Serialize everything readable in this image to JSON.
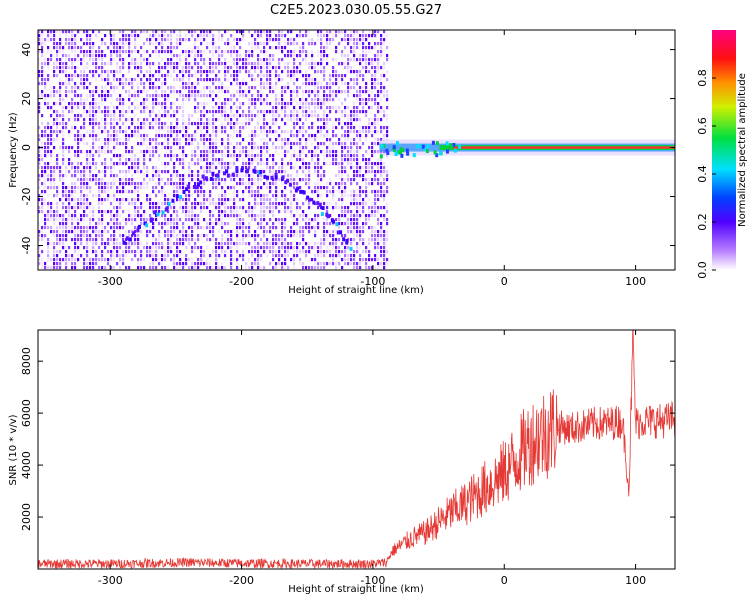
{
  "title": "C2E5.2023.030.05.55.G27",
  "colors": {
    "snr_line": "#e53935",
    "spectrogram_base": "#7a2cff",
    "tone": "#ff2f2f"
  },
  "chart_data": [
    {
      "type": "heatmap",
      "xlabel": "Height of straight line (km)",
      "ylabel": "Frequency (Hz)",
      "xlim": [
        -355,
        130
      ],
      "ylim": [
        -50,
        48
      ],
      "x_ticks": [
        -300,
        -200,
        -100,
        0,
        100
      ],
      "y_ticks": [
        -40,
        -20,
        0,
        20,
        40
      ],
      "colorbar": {
        "label": "Normalized spectral amplitude",
        "range": [
          0.0,
          1.0
        ],
        "ticks": [
          "0.0",
          "0.2",
          "0.4",
          "0.6",
          "0.8"
        ],
        "colormap": "rainbow"
      },
      "features": [
        {
          "name": "arc",
          "x": [
            -290,
            -260,
            -230,
            -200,
            -170,
            -140,
            -118
          ],
          "y": [
            -38,
            -24,
            -12,
            -8,
            -12,
            -24,
            -40
          ]
        },
        {
          "name": "tone",
          "x": [
            -95,
            -60,
            -30,
            0,
            50,
            100,
            130
          ],
          "y": [
            0,
            0,
            1,
            0,
            0,
            0,
            0
          ]
        }
      ],
      "noise_region_x": [
        -355,
        -90
      ]
    },
    {
      "type": "line",
      "xlabel": "Height of straight line (km)",
      "ylabel": "SNR (10 * v/v)",
      "xlim": [
        -355,
        130
      ],
      "ylim": [
        0,
        9200
      ],
      "x_ticks": [
        -300,
        -200,
        -100,
        0,
        100
      ],
      "y_ticks": [
        2000,
        4000,
        6000,
        8000
      ],
      "series": [
        {
          "x": [
            -355,
            -300,
            -240,
            -200,
            -150,
            -100,
            -90,
            -85,
            -70,
            -60,
            -50,
            -40,
            -30,
            -20,
            -10,
            0,
            10,
            20,
            30,
            40,
            50,
            60,
            70,
            80,
            90,
            95,
            98,
            100,
            105,
            110,
            120,
            130
          ],
          "y": [
            200,
            200,
            250,
            220,
            200,
            200,
            250,
            700,
            1200,
            1400,
            1800,
            2200,
            2500,
            2900,
            3300,
            3700,
            4300,
            4900,
            5200,
            5500,
            5400,
            5500,
            5600,
            5600,
            5700,
            3000,
            9000,
            5600,
            5700,
            5700,
            5700,
            5800
          ]
        }
      ]
    }
  ]
}
